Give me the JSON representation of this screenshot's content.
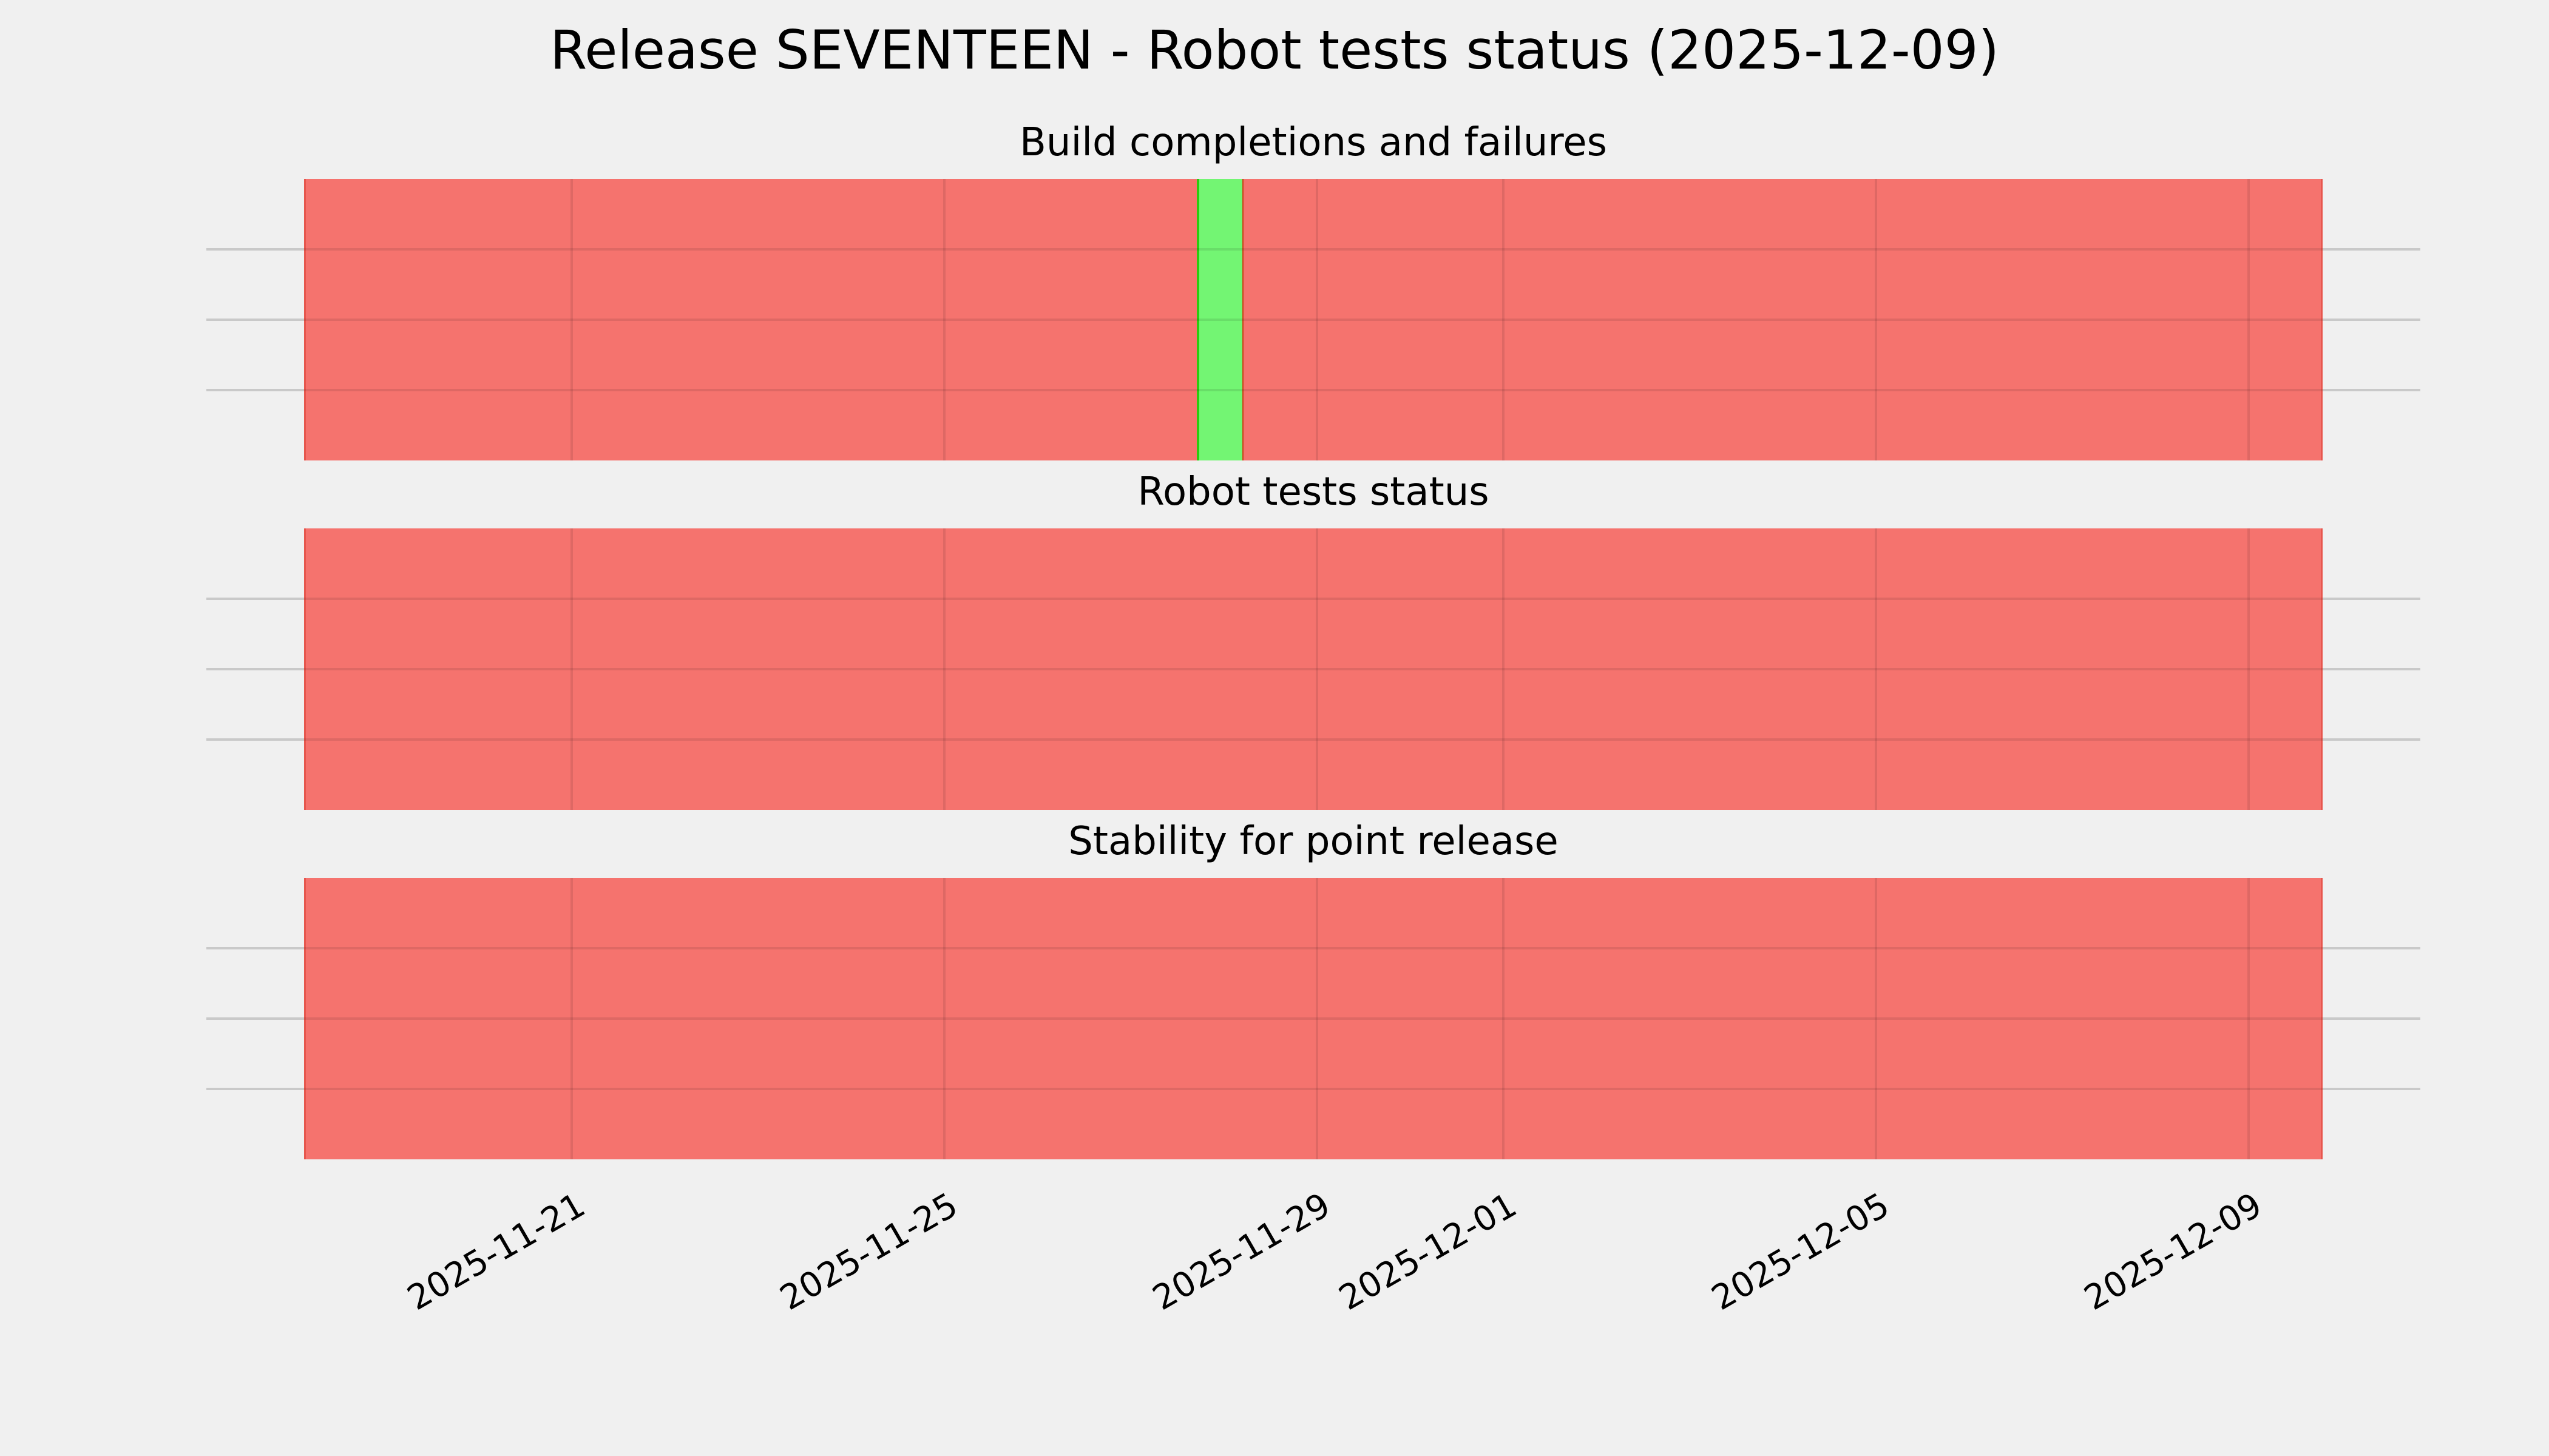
{
  "figure": {
    "title": "Release SEVENTEEN - Robot tests status (2025-12-09)",
    "background": "#f0f0f0"
  },
  "chart_data": {
    "type": "bar",
    "title": "Release SEVENTEEN - Robot tests status (2025-12-09)",
    "x_range": {
      "start": "2025-11-18T03:00",
      "end": "2025-12-09T19:00"
    },
    "x_ticks": [
      "2025-11-21",
      "2025-11-25",
      "2025-11-29",
      "2025-12-01",
      "2025-12-05",
      "2025-12-09"
    ],
    "y_gridlines_per_subplot": 3,
    "grid": true,
    "legend": false,
    "colors": {
      "background": "#f0f0f0",
      "fail": "#f5736e",
      "pass": "#73f573",
      "grid_margin": "#c9c9c9",
      "grid_on_bars": "rgba(0,0,0,0.09)",
      "pass_edge": "#2bcb10",
      "pass_fail_boundary": "#c84418",
      "strip_edge": "rgba(214,54,40,0.45)"
    },
    "subplots": [
      {
        "title": "Build completions and failures",
        "segments": [
          {
            "start": "2025-11-18T03:00",
            "end": "2025-11-27T17:00",
            "status": "fail"
          },
          {
            "start": "2025-11-27T17:00",
            "end": "2025-11-28T05:00",
            "status": "pass"
          },
          {
            "start": "2025-11-28T05:00",
            "end": "2025-12-09T19:00",
            "status": "fail"
          }
        ]
      },
      {
        "title": "Robot tests status",
        "segments": [
          {
            "start": "2025-11-18T03:00",
            "end": "2025-12-09T19:00",
            "status": "fail"
          }
        ]
      },
      {
        "title": "Stability for point release",
        "segments": [
          {
            "start": "2025-11-18T03:00",
            "end": "2025-12-09T19:00",
            "status": "fail"
          }
        ]
      }
    ]
  }
}
